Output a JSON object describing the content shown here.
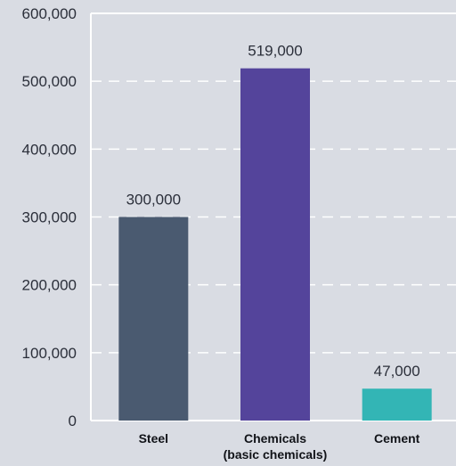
{
  "chart_data": {
    "type": "bar",
    "categories": [
      [
        "Steel"
      ],
      [
        "Chemicals",
        "(basic chemicals)"
      ],
      [
        "Cement"
      ]
    ],
    "values": [
      300000,
      519000,
      47000
    ],
    "value_labels": [
      "300,000",
      "519,000",
      "47,000"
    ],
    "bar_colors": [
      "#4a5a70",
      "#54449b",
      "#33b5b5"
    ],
    "ylim": [
      0,
      600000
    ],
    "yticks": [
      0,
      100000,
      200000,
      300000,
      400000,
      500000,
      600000
    ],
    "ytick_labels": [
      "0",
      "100,000",
      "200,000",
      "300,000",
      "400,000",
      "500,000",
      "600,000"
    ],
    "grid": true,
    "grid_color": "#ffffff",
    "title": "",
    "xlabel": "",
    "ylabel": ""
  }
}
